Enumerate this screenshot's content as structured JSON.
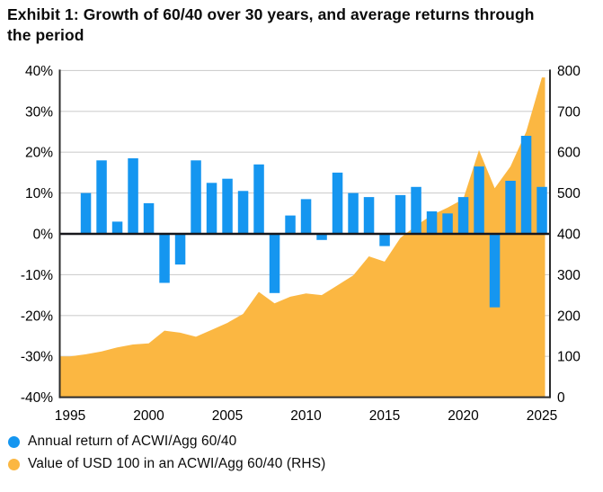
{
  "title": "Exhibit 1: Growth of 60/40 over 30 years, and average returns through the period",
  "legend": {
    "items": [
      {
        "label": "Annual return of ACWI/Agg 60/40",
        "color": "#1596f0"
      },
      {
        "label": "Value of USD 100 in an ACWI/Agg 60/40 (RHS)",
        "color": "#fbb742"
      }
    ]
  },
  "chart_data": {
    "type": "combo-bar-area",
    "title": "Exhibit 1: Growth of 60/40 over 30 years, and average returns through the period",
    "grid": true,
    "x_axis": {
      "min": 1995,
      "max": 2025,
      "tick_labels": [
        "1995",
        "2000",
        "2005",
        "2010",
        "2015",
        "2020",
        "2025"
      ],
      "tick_values": [
        1995,
        2000,
        2005,
        2010,
        2015,
        2020,
        2025
      ]
    },
    "left_axis": {
      "min": -40,
      "max": 40,
      "unit": "%",
      "tick_labels": [
        "40%",
        "30%",
        "20%",
        "10%",
        "0%",
        "-10%",
        "-20%",
        "-30%",
        "-40%"
      ],
      "tick_values": [
        40,
        30,
        20,
        10,
        0,
        -10,
        -20,
        -30,
        -40
      ]
    },
    "right_axis": {
      "min": 0,
      "max": 800,
      "tick_labels": [
        "800",
        "700",
        "600",
        "500",
        "400",
        "300",
        "200",
        "100",
        "0"
      ],
      "tick_values": [
        800,
        700,
        600,
        500,
        400,
        300,
        200,
        100,
        0
      ]
    },
    "series": [
      {
        "name": "Annual return of ACWI/Agg 60/40",
        "type": "bar",
        "axis": "left",
        "color": "#1596f0",
        "years": [
          1996,
          1997,
          1998,
          1999,
          2000,
          2001,
          2002,
          2003,
          2004,
          2005,
          2006,
          2007,
          2008,
          2009,
          2010,
          2011,
          2012,
          2013,
          2014,
          2015,
          2016,
          2017,
          2018,
          2019,
          2020,
          2021,
          2022,
          2023,
          2024,
          2025
        ],
        "values": [
          10,
          18,
          3,
          18.5,
          7.5,
          -12,
          -7.5,
          18,
          12.5,
          13.5,
          10.5,
          17,
          -14.5,
          4.5,
          8.5,
          -1.5,
          15,
          10,
          9,
          -3,
          9.5,
          11.5,
          5.5,
          5,
          9,
          16.5,
          -18,
          13,
          24,
          11.5
        ]
      },
      {
        "name": "Value of USD 100 in an ACWI/Agg 60/40 (RHS)",
        "type": "area",
        "axis": "right",
        "color": "#fbb742",
        "years": [
          1995,
          1996,
          1997,
          1998,
          1999,
          2000,
          2001,
          2002,
          2003,
          2004,
          2005,
          2006,
          2007,
          2008,
          2009,
          2010,
          2011,
          2012,
          2013,
          2014,
          2015,
          2016,
          2017,
          2018,
          2019,
          2020,
          2021,
          2022,
          2023,
          2024,
          2025
        ],
        "values": [
          100,
          105,
          112,
          122,
          129,
          132,
          163,
          158,
          148,
          165,
          182,
          204,
          258,
          230,
          246,
          254,
          250,
          274,
          298,
          345,
          332,
          390,
          420,
          446,
          464,
          485,
          605,
          512,
          565,
          650,
          783
        ]
      }
    ]
  }
}
